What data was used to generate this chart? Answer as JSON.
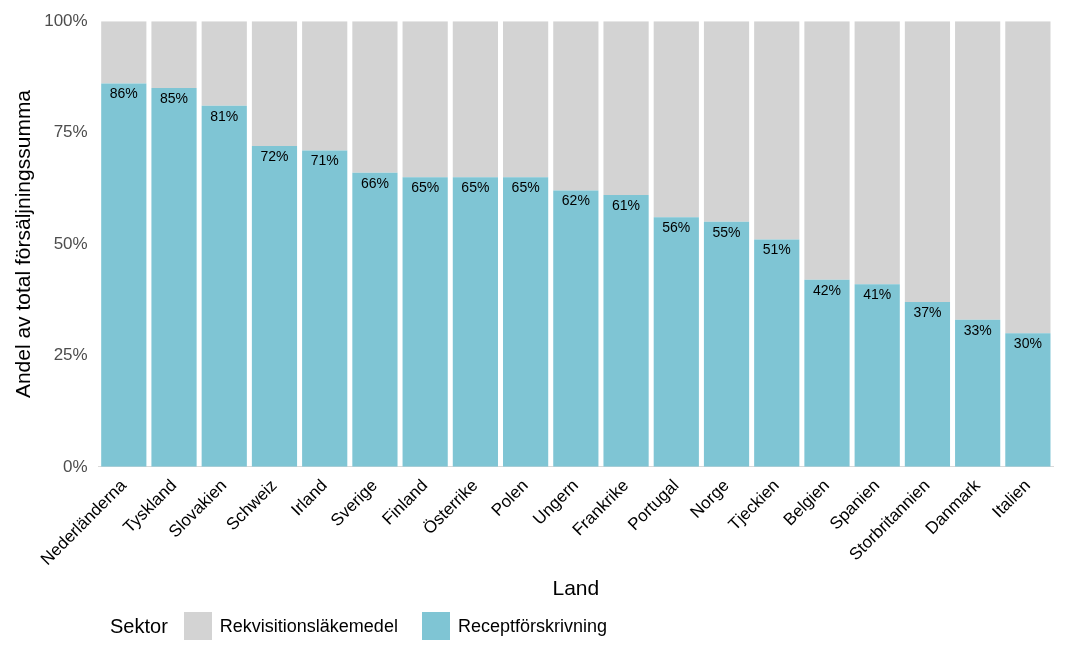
{
  "chart_data": {
    "type": "bar",
    "stacked": true,
    "xlabel": "Land",
    "ylabel": "Andel av total försäljningssumma",
    "legend_title": "Sektor",
    "legend": "bottom left",
    "grid": false,
    "categories": [
      "Nederländerna",
      "Tyskland",
      "Slovakien",
      "Schweiz",
      "Irland",
      "Sverige",
      "Finland",
      "Österrike",
      "Polen",
      "Ungern",
      "Frankrike",
      "Portugal",
      "Norge",
      "Tjeckien",
      "Belgien",
      "Spanien",
      "Storbritannien",
      "Danmark",
      "Italien"
    ],
    "ylim": [
      0,
      100
    ],
    "yticks": [
      {
        "value": 0,
        "label": "0%"
      },
      {
        "value": 25,
        "label": "25%"
      },
      {
        "value": 50,
        "label": "50%"
      },
      {
        "value": 75,
        "label": "75%"
      },
      {
        "value": 100,
        "label": "100%"
      }
    ],
    "series": [
      {
        "name": "Receptförskrivning",
        "color": "#7fc5d4",
        "values": [
          86,
          85,
          81,
          72,
          71,
          66,
          65,
          65,
          65,
          62,
          61,
          56,
          55,
          51,
          42,
          41,
          37,
          33,
          30
        ],
        "value_labels": [
          "86%",
          "85%",
          "81%",
          "72%",
          "71%",
          "66%",
          "65%",
          "65%",
          "65%",
          "62%",
          "61%",
          "56%",
          "55%",
          "51%",
          "42%",
          "41%",
          "37%",
          "33%",
          "30%"
        ]
      },
      {
        "name": "Rekvisitionsläkemedel",
        "color": "#d3d3d3",
        "values": [
          14,
          15,
          19,
          28,
          29,
          34,
          35,
          35,
          35,
          38,
          39,
          44,
          45,
          49,
          58,
          59,
          63,
          67,
          70
        ]
      }
    ]
  }
}
